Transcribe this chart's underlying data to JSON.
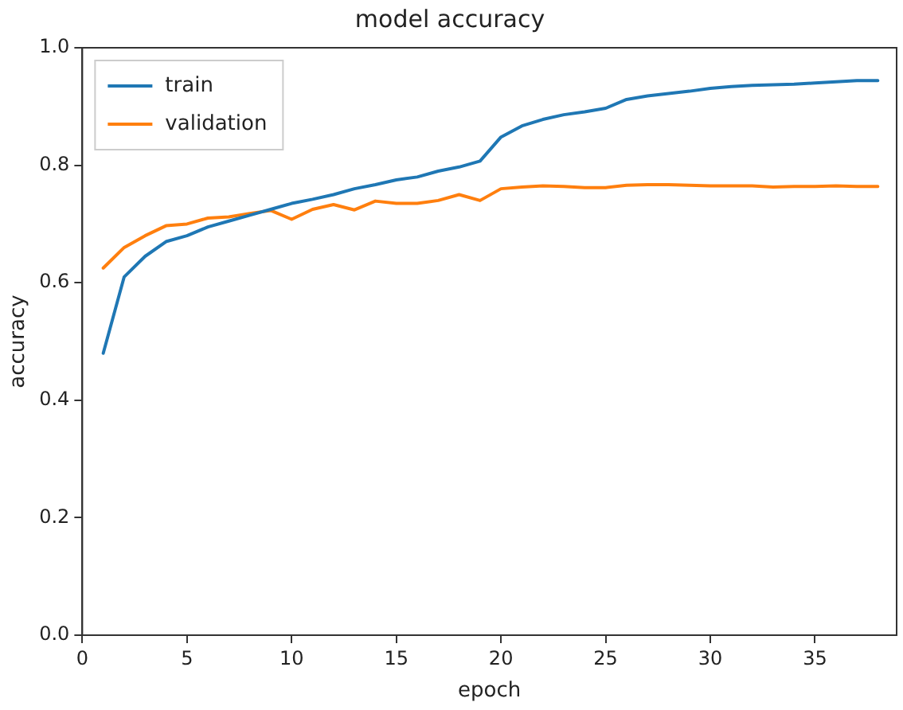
{
  "chart_data": {
    "type": "line",
    "title": "model accuracy",
    "xlabel": "epoch",
    "ylabel": "accuracy",
    "x": [
      1,
      2,
      3,
      4,
      5,
      6,
      7,
      8,
      9,
      10,
      11,
      12,
      13,
      14,
      15,
      16,
      17,
      18,
      19,
      20,
      21,
      22,
      23,
      24,
      25,
      26,
      27,
      28,
      29,
      30,
      31,
      32,
      33,
      34,
      35,
      36,
      37,
      38
    ],
    "series": [
      {
        "name": "train",
        "color": "#1f77b4",
        "values": [
          0.48,
          0.61,
          0.645,
          0.67,
          0.68,
          0.695,
          0.705,
          0.715,
          0.725,
          0.735,
          0.742,
          0.75,
          0.76,
          0.767,
          0.775,
          0.78,
          0.79,
          0.797,
          0.807,
          0.848,
          0.867,
          0.878,
          0.886,
          0.891,
          0.897,
          0.912,
          0.918,
          0.922,
          0.926,
          0.931,
          0.934,
          0.936,
          0.937,
          0.938,
          0.94,
          0.942,
          0.944,
          0.944
        ]
      },
      {
        "name": "validation",
        "color": "#ff7f0e",
        "values": [
          0.625,
          0.66,
          0.68,
          0.697,
          0.7,
          0.71,
          0.712,
          0.718,
          0.723,
          0.708,
          0.725,
          0.733,
          0.724,
          0.739,
          0.735,
          0.735,
          0.74,
          0.75,
          0.74,
          0.76,
          0.763,
          0.765,
          0.764,
          0.762,
          0.762,
          0.766,
          0.767,
          0.767,
          0.766,
          0.765,
          0.765,
          0.765,
          0.763,
          0.764,
          0.764,
          0.765,
          0.764,
          0.764
        ]
      }
    ],
    "xlim": [
      0,
      38.9
    ],
    "xticks": [
      0,
      5,
      10,
      15,
      20,
      25,
      30,
      35
    ],
    "ylim": [
      0,
      1
    ],
    "yticks": [
      {
        "value": 0,
        "label": "0.0"
      },
      {
        "value": 0.2,
        "label": "0.2"
      },
      {
        "value": 0.4,
        "label": "0.4"
      },
      {
        "value": 0.6,
        "label": "0.6"
      },
      {
        "value": 0.8,
        "label": "0.8"
      },
      {
        "value": 1,
        "label": "1.0"
      }
    ],
    "legend": "top left",
    "grid": false,
    "marker": "none",
    "line_style": "solid"
  }
}
